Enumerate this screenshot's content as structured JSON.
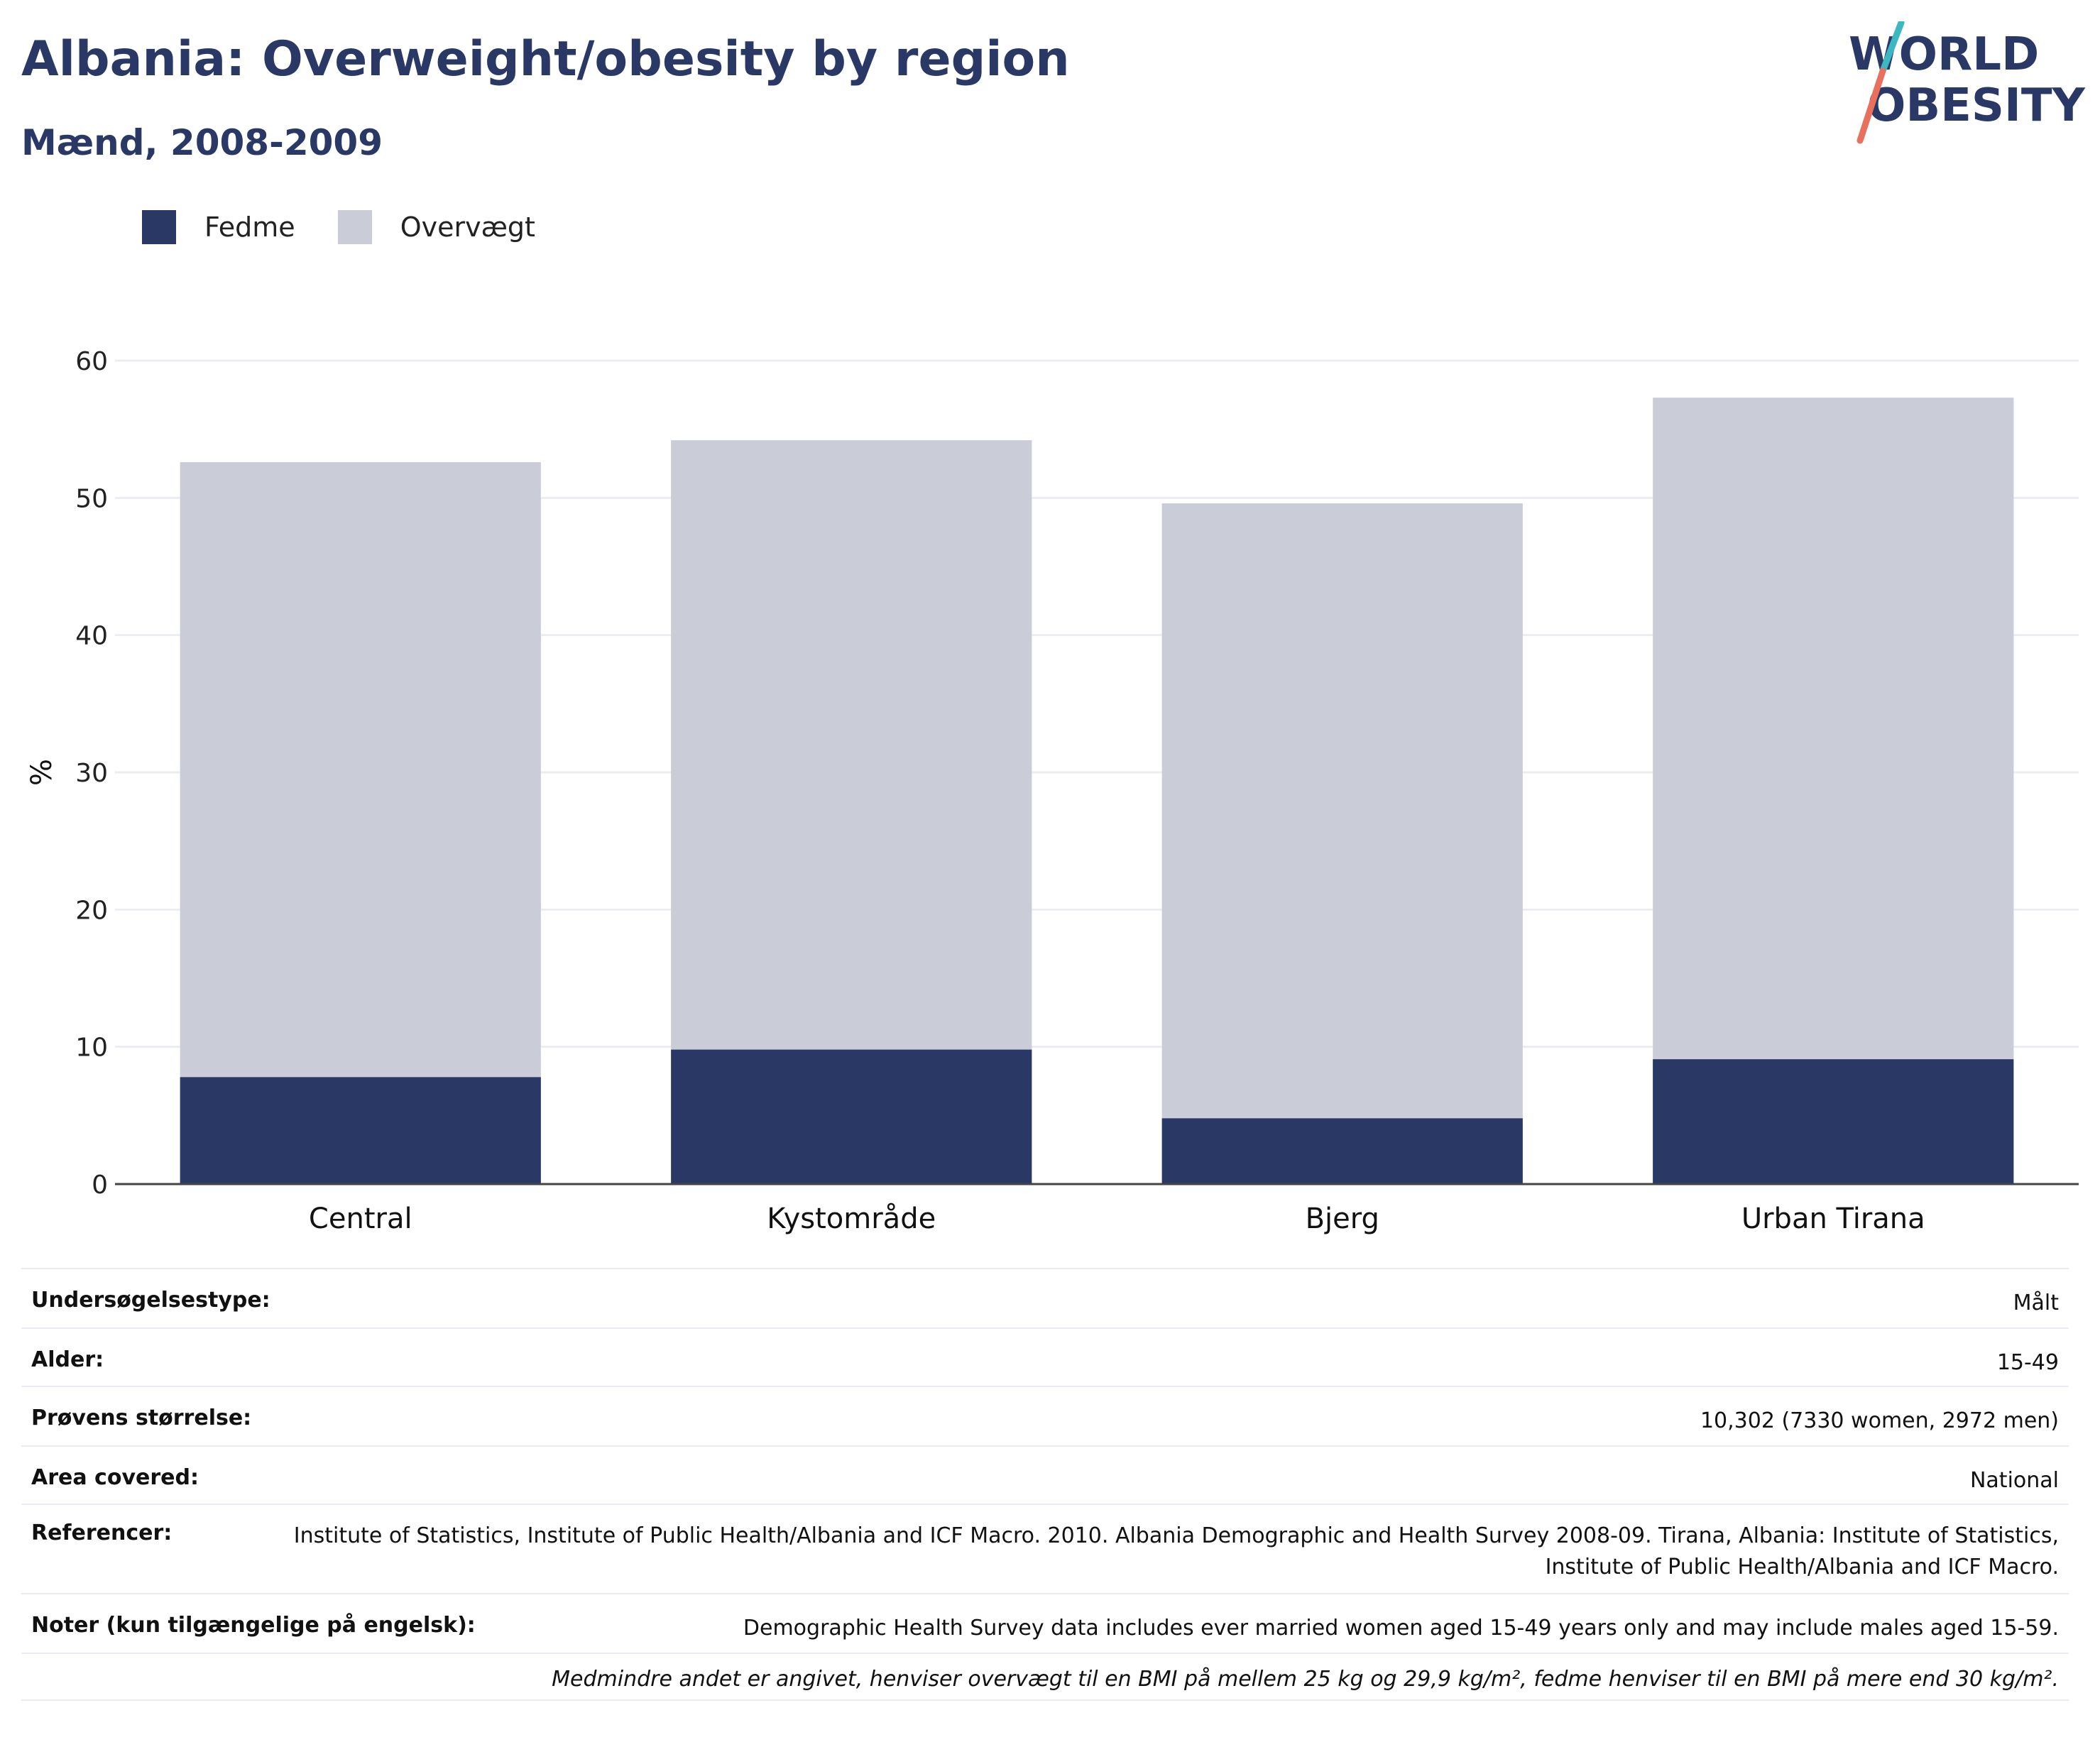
{
  "header": {
    "title": "Albania: Overweight/obesity by region",
    "subtitle": "Mænd, 2008-2009"
  },
  "logo": {
    "line1": "WORLD",
    "line2": "OBESITY"
  },
  "legend": [
    {
      "label": "Fedme",
      "color": "#2a3865"
    },
    {
      "label": "Overvægt",
      "color": "#cacdd8"
    }
  ],
  "chart_data": {
    "type": "bar",
    "stacked": true,
    "categories": [
      "Central",
      "Kystområde",
      "Bjerg",
      "Urban Tirana"
    ],
    "series": [
      {
        "name": "Fedme",
        "values": [
          7.8,
          9.8,
          4.8,
          9.1
        ],
        "color": "#2a3865"
      },
      {
        "name": "Overvægt",
        "values": [
          44.8,
          44.4,
          44.8,
          48.2
        ],
        "color": "#cacdd8"
      }
    ],
    "ylabel": "%",
    "ylim": [
      0,
      60
    ],
    "yticks": [
      0,
      10,
      20,
      30,
      40,
      50,
      60
    ],
    "grid": true,
    "legend_position": "top-left"
  },
  "info": {
    "rows": [
      {
        "key": "Undersøgelsestype:",
        "value": "Målt"
      },
      {
        "key": "Alder:",
        "value": "15-49"
      },
      {
        "key": "Prøvens størrelse:",
        "value": "10,302 (7330 women, 2972 men)"
      },
      {
        "key": "Area covered:",
        "value": "National"
      },
      {
        "key": "Referencer:",
        "value": "Institute of Statistics, Institute of Public Health/Albania and ICF Macro. 2010. Albania Demographic and Health Survey 2008-09. Tirana, Albania: Institute of Statistics, Institute of Public Health/Albania and ICF Macro."
      },
      {
        "key": "Noter (kun tilgængelige på engelsk):",
        "value": "Demographic Health Survey data includes ever married women aged 15-49 years only and may include males aged 15-59."
      }
    ],
    "footnote": "Medmindre andet er angivet, henviser overvægt til en BMI på mellem 25 kg og 29,9 kg/m², fedme henviser til en BMI på mere end 30 kg/m²."
  }
}
